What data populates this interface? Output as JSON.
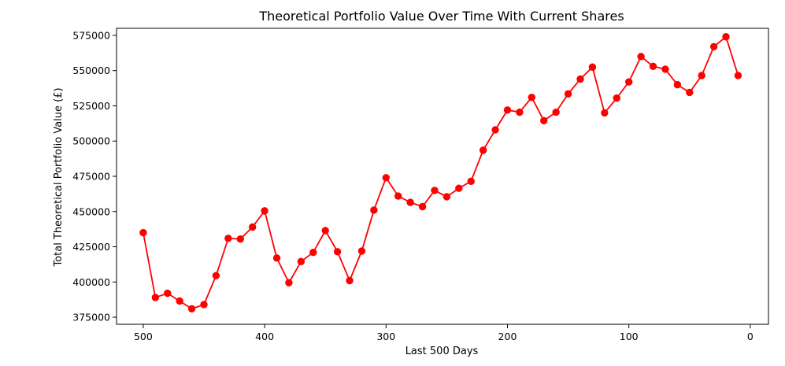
{
  "chart_data": {
    "type": "line",
    "title": "Theoretical Portfolio Value Over Time With Current Shares",
    "xlabel": "Last 500 Days",
    "ylabel": "Total Theoretical Portfolio Value (£)",
    "xlim": [
      522,
      -15
    ],
    "ylim": [
      370000,
      580000
    ],
    "x_reversed": true,
    "grid": false,
    "color": "#ff0000",
    "marker": "circle",
    "xticks": [
      500,
      400,
      300,
      200,
      100,
      0
    ],
    "xtick_labels": [
      "500",
      "400",
      "300",
      "200",
      "100",
      "0"
    ],
    "yticks": [
      375000,
      400000,
      425000,
      450000,
      475000,
      500000,
      525000,
      550000,
      575000
    ],
    "ytick_labels": [
      "375000",
      "400000",
      "425000",
      "450000",
      "475000",
      "500000",
      "525000",
      "550000",
      "575000"
    ],
    "x": [
      500,
      490,
      480,
      470,
      460,
      450,
      440,
      430,
      420,
      410,
      400,
      390,
      380,
      370,
      360,
      350,
      340,
      330,
      320,
      310,
      300,
      290,
      280,
      270,
      260,
      250,
      240,
      230,
      220,
      210,
      200,
      190,
      180,
      170,
      160,
      150,
      140,
      130,
      120,
      110,
      100,
      90,
      80,
      70,
      60,
      50,
      40,
      30,
      20,
      10
    ],
    "y": [
      435000,
      389000,
      392000,
      386500,
      381000,
      384000,
      404500,
      431000,
      430500,
      439000,
      450500,
      417000,
      399500,
      414500,
      421000,
      436500,
      421500,
      401000,
      422000,
      451000,
      474000,
      461000,
      456500,
      453500,
      465000,
      460500,
      466500,
      471500,
      493500,
      508000,
      522000,
      520500,
      531000,
      514500,
      520500,
      533500,
      544000,
      552500,
      520000,
      530500,
      542000,
      560000,
      553000,
      551000,
      540000,
      534500,
      546500,
      567000,
      574000,
      546500
    ]
  }
}
